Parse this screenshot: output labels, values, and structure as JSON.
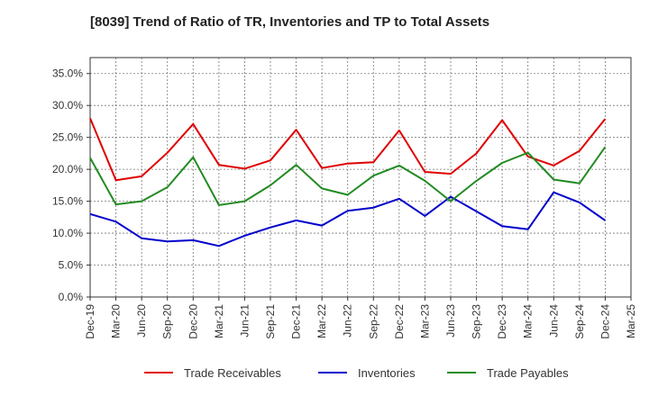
{
  "chart_data": {
    "type": "line",
    "title": "[8039]  Trend of Ratio of TR, Inventories and TP to Total Assets",
    "xlabel": "",
    "ylabel": "",
    "ylim": [
      0,
      37.5
    ],
    "y_ticks": [
      0,
      5,
      10,
      15,
      20,
      25,
      30,
      35
    ],
    "y_tick_labels": [
      "0.0%",
      "5.0%",
      "10.0%",
      "15.0%",
      "20.0%",
      "25.0%",
      "30.0%",
      "35.0%"
    ],
    "grid": true,
    "legend_position": "bottom",
    "x_tick_labels": [
      "Dec-19",
      "Mar-20",
      "Jun-20",
      "Sep-20",
      "Dec-20",
      "Mar-21",
      "Jun-21",
      "Sep-21",
      "Dec-21",
      "Mar-22",
      "Jun-22",
      "Sep-22",
      "Dec-22",
      "Mar-23",
      "Jun-23",
      "Sep-23",
      "Dec-23",
      "Mar-24",
      "Jun-24",
      "Sep-24",
      "Dec-24",
      "Mar-25"
    ],
    "x": [
      "Dec-19",
      "Mar-20",
      "Jun-20",
      "Sep-20",
      "Dec-20",
      "Mar-21",
      "Jun-21",
      "Sep-21",
      "Dec-21",
      "Mar-22",
      "Jun-22",
      "Sep-22",
      "Dec-22",
      "Mar-23",
      "Jun-23",
      "Sep-23",
      "Dec-23",
      "Mar-24",
      "Jun-24",
      "Sep-24",
      "Dec-24"
    ],
    "series": [
      {
        "name": "Trade Receivables",
        "color": "#e00000",
        "values": [
          28.0,
          18.3,
          18.9,
          22.6,
          27.1,
          20.7,
          20.1,
          21.4,
          26.2,
          20.2,
          20.9,
          21.1,
          26.1,
          19.6,
          19.3,
          22.5,
          27.7,
          22.0,
          20.6,
          22.9,
          27.9
        ]
      },
      {
        "name": "Inventories",
        "color": "#0000cc",
        "values": [
          13.0,
          11.8,
          9.2,
          8.7,
          8.9,
          8.0,
          9.6,
          10.9,
          12.0,
          11.2,
          13.5,
          14.0,
          15.4,
          12.7,
          15.7,
          13.4,
          11.1,
          10.6,
          16.4,
          14.8,
          12.0
        ]
      },
      {
        "name": "Trade Payables",
        "color": "#228b22",
        "values": [
          21.8,
          14.5,
          15.0,
          17.2,
          21.9,
          14.4,
          15.0,
          17.5,
          20.7,
          17.0,
          16.0,
          19.0,
          20.6,
          18.2,
          15.0,
          18.2,
          21.0,
          22.6,
          18.4,
          17.8,
          23.5
        ]
      }
    ]
  }
}
